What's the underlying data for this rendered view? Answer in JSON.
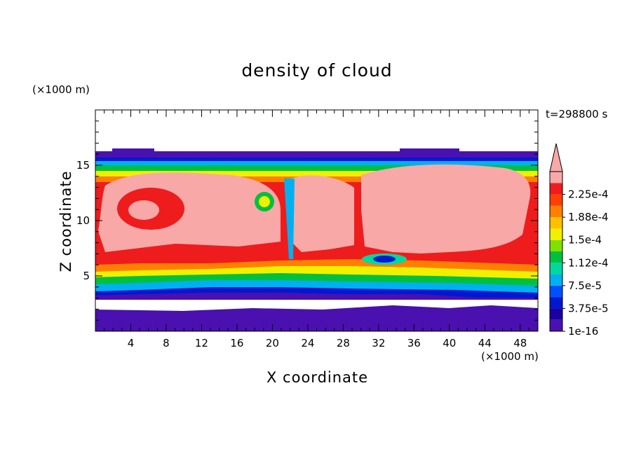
{
  "chart_data": {
    "type": "heatmap",
    "title": "density of cloud",
    "xlabel": "X coordinate",
    "ylabel": "Z coordinate",
    "x_unit_label": "(×1000 m)",
    "y_unit_label": "(×1000 m)",
    "time_label": "t=298800 s",
    "xlim": [
      0,
      50
    ],
    "ylim": [
      0,
      20
    ],
    "x_ticks": [
      4,
      8,
      12,
      16,
      20,
      24,
      28,
      32,
      36,
      40,
      44,
      48
    ],
    "y_ticks": [
      5,
      10,
      15
    ],
    "colorbar": {
      "tick_labels": [
        "2.25e-4",
        "1.88e-4",
        "1.5e-4",
        "1.12e-4",
        "7.5e-5",
        "3.75e-5",
        "1e-16"
      ],
      "levels": [
        1e-16,
        1.875e-05,
        3.75e-05,
        5.625e-05,
        7.5e-05,
        9.375e-05,
        0.0001125,
        0.00013125,
        0.00015,
        0.00016875,
        0.0001875,
        0.00020625,
        0.000225,
        0.00024375
      ],
      "colors": [
        "#4a10b0",
        "#1a00a0",
        "#0018d0",
        "#0050ff",
        "#00b0f0",
        "#00d8a0",
        "#00c040",
        "#80e000",
        "#f0f000",
        "#ffc000",
        "#ff8000",
        "#ff4000",
        "#ee1c1c",
        "#f9a8a8"
      ],
      "extend": "max"
    },
    "cloud_layer_top_z": 16
  }
}
